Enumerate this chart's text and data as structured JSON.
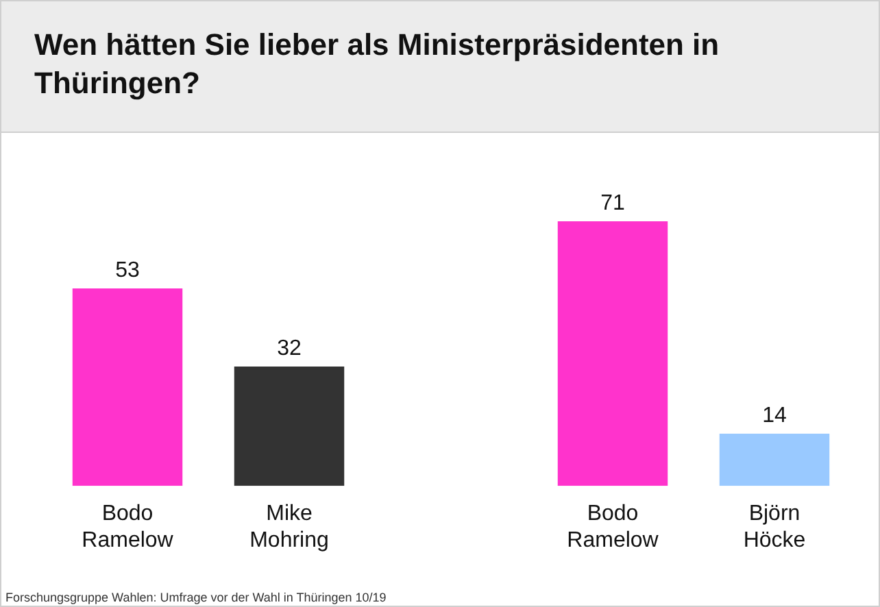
{
  "chart_data": {
    "type": "bar",
    "title": "Wen hätten Sie lieber als Ministerpräsidenten in Thüringen?",
    "categories": [
      "Bodo Ramelow",
      "Mike Mohring",
      null,
      "Bodo Ramelow",
      "Björn Höcke"
    ],
    "values": [
      53,
      32,
      null,
      71,
      14
    ],
    "colors": [
      "#ff33cc",
      "#333333",
      "#ffffff",
      "#ff33cc",
      "#99c9ff"
    ],
    "data_labels": true,
    "annotations": [
      "Forschungsgruppe Wahlen: Umfrage vor der Wahl in Thüringen 10/19"
    ]
  }
}
